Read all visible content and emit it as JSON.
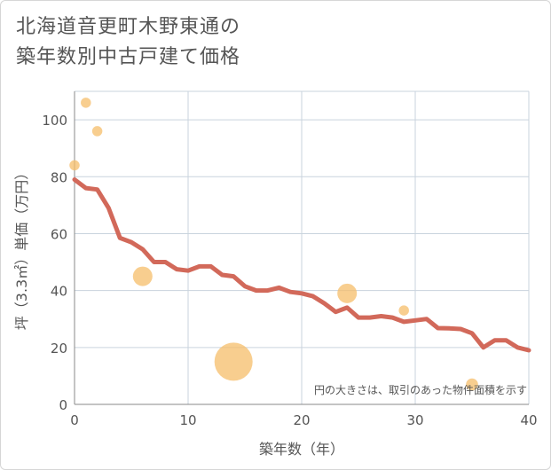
{
  "title_lines": [
    "北海道音更町木野東通の",
    "築年数別中古戸建て価格"
  ],
  "chart_data": {
    "type": "scatter+line",
    "title": "北海道音更町木野東通の築年数別中古戸建て価格",
    "xlabel": "築年数（年）",
    "ylabel": "坪（3.3㎡）単価（万円）",
    "xlim": [
      0,
      40
    ],
    "ylim": [
      0,
      110
    ],
    "xticks": [
      0,
      10,
      20,
      30,
      40
    ],
    "yticks": [
      0,
      20,
      40,
      60,
      80,
      100
    ],
    "grid": true,
    "note": "円の大きさは、取引のあった物件面積を示す",
    "trend_line": {
      "x": [
        0,
        1,
        2,
        3,
        4,
        5,
        6,
        7,
        8,
        9,
        10,
        11,
        12,
        13,
        14,
        15,
        16,
        17,
        18,
        19,
        20,
        21,
        22,
        23,
        24,
        25,
        26,
        27,
        28,
        29,
        30,
        31,
        32,
        33,
        34,
        35,
        36,
        37,
        38,
        39,
        40
      ],
      "y": [
        79,
        76,
        75.5,
        69,
        58.5,
        57,
        54.5,
        50,
        50,
        47.5,
        47,
        48.5,
        48.5,
        45.5,
        45,
        41.5,
        40,
        40,
        41,
        39.5,
        39,
        38,
        35.5,
        32.5,
        34,
        30.5,
        30.5,
        31,
        30.5,
        29,
        29.5,
        30,
        26.8,
        26.7,
        26.5,
        25,
        20,
        22.5,
        22.5,
        20,
        19
      ]
    },
    "bubbles": [
      {
        "x": 0,
        "y": 84,
        "size": 5
      },
      {
        "x": 1,
        "y": 106,
        "size": 5
      },
      {
        "x": 2,
        "y": 96,
        "size": 5
      },
      {
        "x": 6,
        "y": 45,
        "size": 10
      },
      {
        "x": 14,
        "y": 15,
        "size": 20
      },
      {
        "x": 24,
        "y": 39,
        "size": 10
      },
      {
        "x": 29,
        "y": 33,
        "size": 5
      },
      {
        "x": 35,
        "y": 7,
        "size": 6
      }
    ],
    "colors": {
      "line": "#d2695a",
      "bubble": "#f5bd6a",
      "grid": "#c9d3dd",
      "text": "#555555"
    }
  }
}
